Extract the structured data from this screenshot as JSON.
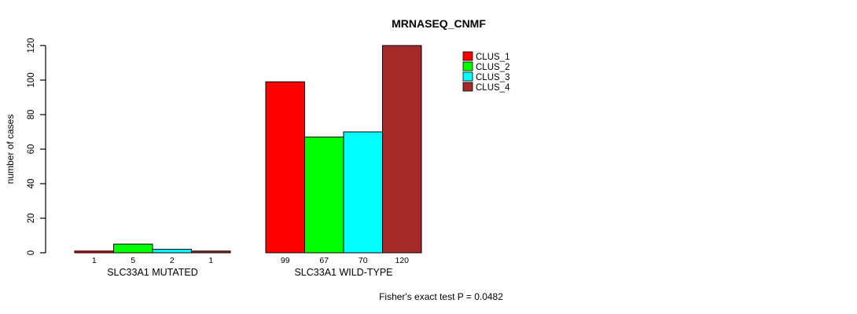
{
  "chart_data": {
    "type": "bar",
    "title": "MRNASEQ_CNMF",
    "ylabel": "number of cases",
    "xlabel": "",
    "ylim": [
      0,
      120
    ],
    "yticks": [
      0,
      20,
      40,
      60,
      80,
      100,
      120
    ],
    "grid": false,
    "legend_position": "top-right",
    "categories": [
      "SLC33A1 MUTATED",
      "SLC33A1 WILD-TYPE"
    ],
    "series": [
      {
        "name": "CLUS_1",
        "color": "#ff0000",
        "values": [
          1,
          99
        ]
      },
      {
        "name": "CLUS_2",
        "color": "#00ff00",
        "values": [
          5,
          67
        ]
      },
      {
        "name": "CLUS_3",
        "color": "#00ffff",
        "values": [
          2,
          70
        ]
      },
      {
        "name": "CLUS_4",
        "color": "#a52a2a",
        "values": [
          1,
          120
        ]
      }
    ],
    "bar_value_labels": [
      [
        "1",
        "5",
        "2",
        "1"
      ],
      [
        "99",
        "67",
        "70",
        "120"
      ]
    ],
    "annotation": "Fisher's exact test P = 0.0482"
  },
  "colors": {
    "axis": "#000000",
    "text": "#000000",
    "bar_border": "#000000",
    "background": "#ffffff"
  }
}
